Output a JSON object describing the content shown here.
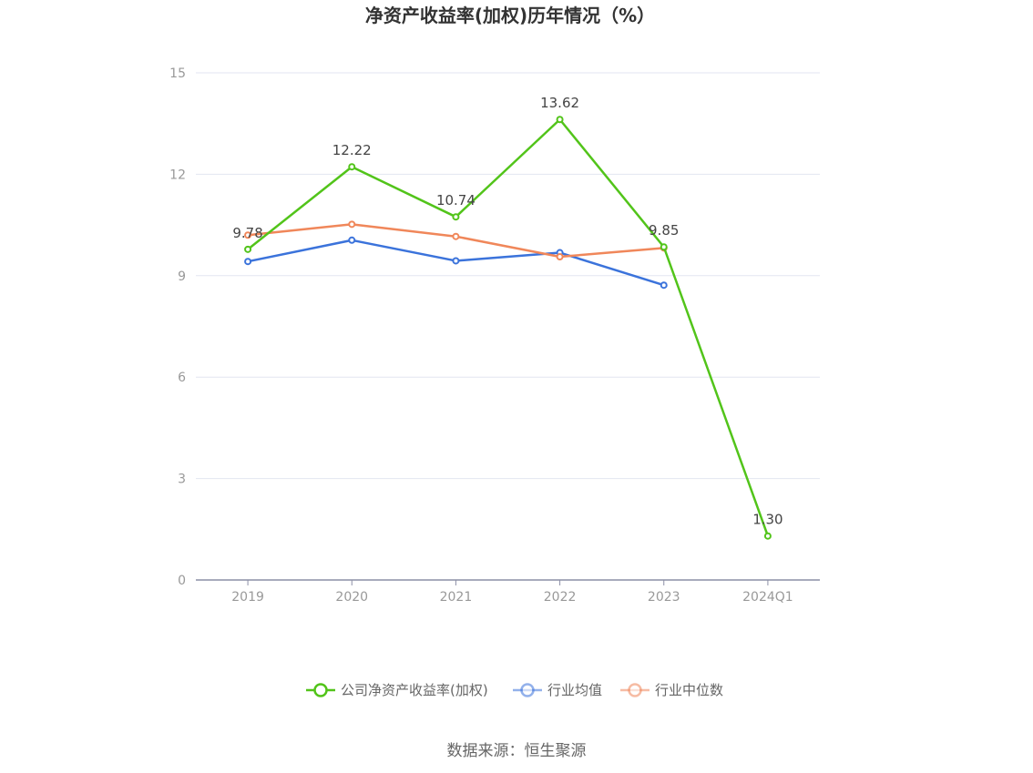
{
  "chart_data": {
    "type": "line",
    "title": "净资产收益率(加权)历年情况（%）",
    "categories": [
      "2019",
      "2020",
      "2021",
      "2022",
      "2023",
      "2024Q1"
    ],
    "ylim": [
      0,
      15
    ],
    "yticks": [
      "0",
      "3",
      "6",
      "9",
      "12",
      "15"
    ],
    "grid": true,
    "legend_position": "bottom",
    "series": [
      {
        "name": "公司净资产收益率(加权)",
        "color": "#52c41a",
        "values": [
          9.78,
          12.22,
          10.74,
          13.62,
          9.85,
          1.3
        ],
        "labels": [
          "9.78",
          "12.22",
          "10.74",
          "13.62",
          "9.85",
          "1.30"
        ]
      },
      {
        "name": "行业均值",
        "color": "#3b73db",
        "values": [
          9.42,
          10.05,
          9.44,
          9.68,
          8.72,
          null
        ]
      },
      {
        "name": "行业中位数",
        "color": "#f0875a",
        "values": [
          10.2,
          10.52,
          10.16,
          9.56,
          9.82,
          null
        ]
      }
    ],
    "source": "数据来源：恒生聚源"
  }
}
